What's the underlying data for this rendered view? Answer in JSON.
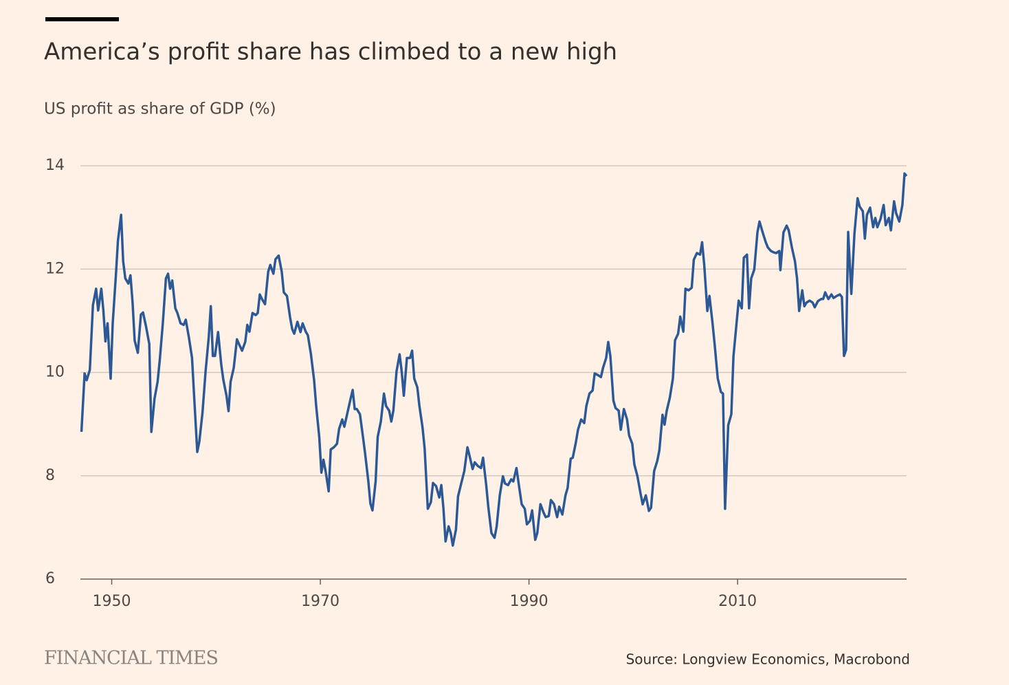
{
  "chart_data": {
    "type": "line",
    "title": "America’s profit share has climbed to a new high",
    "subtitle": "US profit as share of GDP (%)",
    "source": "Source: Longview Economics, Macrobond",
    "brand": "FINANCIAL TIMES",
    "color": "#2c5896",
    "grid": true,
    "xlim": [
      1947,
      2026.2
    ],
    "xticks": [
      1950,
      1970,
      1990,
      2010
    ],
    "ylim": [
      6,
      14
    ],
    "yticks": [
      6,
      8,
      10,
      12,
      14
    ],
    "x": [
      1947.1,
      1947.4,
      1947.6,
      1947.9,
      1948.2,
      1948.5,
      1948.7,
      1949.0,
      1949.2,
      1949.4,
      1949.6,
      1949.9,
      1950.1,
      1950.4,
      1950.6,
      1950.9,
      1951.1,
      1951.3,
      1951.6,
      1951.8,
      1952.0,
      1952.2,
      1952.5,
      1952.8,
      1953.0,
      1953.3,
      1953.6,
      1953.8,
      1954.1,
      1954.4,
      1954.6,
      1954.9,
      1955.2,
      1955.4,
      1955.6,
      1955.8,
      1956.1,
      1956.3,
      1956.6,
      1956.9,
      1957.1,
      1957.4,
      1957.7,
      1957.9,
      1958.2,
      1958.4,
      1958.7,
      1959.0,
      1959.3,
      1959.5,
      1959.7,
      1959.9,
      1960.2,
      1960.5,
      1960.7,
      1961.0,
      1961.2,
      1961.4,
      1961.7,
      1962.0,
      1962.2,
      1962.5,
      1962.8,
      1963.0,
      1963.2,
      1963.5,
      1963.8,
      1964.0,
      1964.2,
      1964.4,
      1964.7,
      1965.0,
      1965.2,
      1965.5,
      1965.7,
      1966.0,
      1966.3,
      1966.5,
      1966.8,
      1967.1,
      1967.3,
      1967.5,
      1967.8,
      1968.1,
      1968.3,
      1968.6,
      1968.8,
      1969.1,
      1969.4,
      1969.6,
      1969.9,
      1970.1,
      1970.3,
      1970.5,
      1970.8,
      1971.0,
      1971.3,
      1971.6,
      1971.8,
      1972.1,
      1972.3,
      1972.6,
      1972.9,
      1973.1,
      1973.3,
      1973.5,
      1973.8,
      1974.1,
      1974.3,
      1974.6,
      1974.8,
      1975.0,
      1975.3,
      1975.5,
      1975.8,
      1976.1,
      1976.3,
      1976.6,
      1976.8,
      1977.0,
      1977.3,
      1977.6,
      1977.8,
      1978.0,
      1978.3,
      1978.6,
      1978.8,
      1979.0,
      1979.3,
      1979.5,
      1979.8,
      1980.0,
      1980.3,
      1980.6,
      1980.8,
      1981.1,
      1981.4,
      1981.6,
      1981.8,
      1982.0,
      1982.3,
      1982.5,
      1982.7,
      1983.0,
      1983.2,
      1983.5,
      1983.8,
      1984.1,
      1984.3,
      1984.6,
      1984.8,
      1985.1,
      1985.4,
      1985.6,
      1985.9,
      1986.1,
      1986.4,
      1986.7,
      1986.9,
      1987.2,
      1987.5,
      1987.7,
      1988.0,
      1988.3,
      1988.5,
      1988.8,
      1989.1,
      1989.3,
      1989.6,
      1989.8,
      1990.1,
      1990.3,
      1990.6,
      1990.8,
      1991.1,
      1991.4,
      1991.6,
      1991.9,
      1992.1,
      1992.4,
      1992.7,
      1992.9,
      1993.2,
      1993.5,
      1993.7,
      1994.0,
      1994.2,
      1994.5,
      1994.7,
      1995.0,
      1995.3,
      1995.5,
      1995.8,
      1996.1,
      1996.3,
      1996.6,
      1996.9,
      1997.1,
      1997.4,
      1997.6,
      1997.8,
      1998.1,
      1998.3,
      1998.6,
      1998.8,
      1999.1,
      1999.4,
      1999.6,
      1999.9,
      2000.1,
      2000.4,
      2000.7,
      2000.9,
      2001.2,
      2001.5,
      2001.7,
      2002.0,
      2002.3,
      2002.5,
      2002.8,
      2003.0,
      2003.2,
      2003.5,
      2003.8,
      2004.0,
      2004.3,
      2004.5,
      2004.8,
      2005.0,
      2005.3,
      2005.6,
      2005.8,
      2006.1,
      2006.4,
      2006.6,
      2006.8,
      2007.1,
      2007.3,
      2007.6,
      2007.8,
      2008.1,
      2008.4,
      2008.6,
      2008.8,
      2009.1,
      2009.4,
      2009.6,
      2009.9,
      2010.1,
      2010.4,
      2010.6,
      2010.9,
      2011.1,
      2011.3,
      2011.6,
      2011.9,
      2012.1,
      2012.4,
      2012.7,
      2012.9,
      2013.2,
      2013.5,
      2013.7,
      2014.0,
      2014.1,
      2014.4,
      2014.7,
      2014.9,
      2015.2,
      2015.5,
      2015.7,
      2015.9,
      2016.2,
      2016.4,
      2016.6,
      2016.9,
      2017.2,
      2017.4,
      2017.7,
      2018.0,
      2018.2,
      2018.4,
      2018.7,
      2019.0,
      2019.2,
      2019.5,
      2019.8,
      2020.0,
      2020.2,
      2020.4,
      2020.6,
      2020.9,
      2021.2,
      2021.5,
      2021.7,
      2022.0,
      2022.2,
      2022.4,
      2022.7,
      2023.0,
      2023.2,
      2023.4,
      2023.7,
      2024.0,
      2024.2,
      2024.5,
      2024.7,
      2025.0,
      2025.2,
      2025.5,
      2025.8,
      2026.0,
      2026.2
    ],
    "values": [
      8.85,
      9.98,
      9.85,
      10.05,
      11.3,
      11.62,
      11.2,
      11.62,
      11.2,
      10.6,
      10.95,
      9.88,
      10.95,
      11.88,
      12.55,
      13.05,
      12.15,
      11.82,
      11.72,
      11.88,
      11.35,
      10.62,
      10.38,
      11.12,
      11.16,
      10.88,
      10.55,
      8.85,
      9.49,
      9.82,
      10.22,
      10.95,
      11.82,
      11.91,
      11.62,
      11.78,
      11.24,
      11.15,
      10.95,
      10.92,
      11.02,
      10.68,
      10.28,
      9.55,
      8.46,
      8.66,
      9.22,
      10.02,
      10.68,
      11.28,
      10.32,
      10.32,
      10.78,
      10.15,
      9.86,
      9.55,
      9.25,
      9.82,
      10.09,
      10.64,
      10.55,
      10.42,
      10.59,
      10.92,
      10.79,
      11.15,
      11.11,
      11.15,
      11.51,
      11.42,
      11.32,
      11.95,
      12.08,
      11.91,
      12.19,
      12.26,
      11.95,
      11.55,
      11.48,
      11.06,
      10.84,
      10.75,
      10.98,
      10.78,
      10.95,
      10.79,
      10.72,
      10.35,
      9.85,
      9.35,
      8.75,
      8.06,
      8.31,
      8.09,
      7.7,
      8.51,
      8.55,
      8.62,
      8.91,
      9.09,
      8.95,
      9.22,
      9.49,
      9.66,
      9.29,
      9.29,
      9.19,
      8.73,
      8.42,
      7.89,
      7.46,
      7.33,
      7.89,
      8.75,
      9.05,
      9.59,
      9.35,
      9.26,
      9.05,
      9.26,
      10.02,
      10.35,
      10.02,
      9.55,
      10.28,
      10.28,
      10.42,
      9.88,
      9.71,
      9.35,
      8.93,
      8.53,
      7.36,
      7.49,
      7.86,
      7.8,
      7.58,
      7.82,
      7.36,
      6.73,
      7.02,
      6.89,
      6.65,
      6.96,
      7.6,
      7.85,
      8.09,
      8.55,
      8.39,
      8.13,
      8.26,
      8.19,
      8.15,
      8.35,
      7.82,
      7.4,
      6.89,
      6.8,
      7.02,
      7.62,
      7.99,
      7.85,
      7.82,
      7.93,
      7.89,
      8.15,
      7.73,
      7.45,
      7.36,
      7.06,
      7.13,
      7.33,
      6.76,
      6.89,
      7.45,
      7.29,
      7.2,
      7.22,
      7.53,
      7.45,
      7.2,
      7.4,
      7.25,
      7.62,
      7.76,
      8.33,
      8.35,
      8.65,
      8.89,
      9.09,
      9.02,
      9.35,
      9.59,
      9.65,
      9.98,
      9.95,
      9.91,
      10.09,
      10.28,
      10.59,
      10.32,
      9.45,
      9.31,
      9.26,
      8.89,
      9.29,
      9.09,
      8.78,
      8.62,
      8.22,
      7.99,
      7.65,
      7.45,
      7.62,
      7.32,
      7.38,
      8.09,
      8.29,
      8.49,
      9.18,
      8.99,
      9.25,
      9.51,
      9.88,
      10.62,
      10.75,
      11.08,
      10.79,
      11.62,
      11.59,
      11.64,
      12.18,
      12.31,
      12.28,
      12.52,
      12.08,
      11.19,
      11.48,
      10.95,
      10.55,
      9.88,
      9.62,
      9.59,
      7.36,
      8.98,
      9.19,
      10.31,
      10.95,
      11.39,
      11.24,
      12.22,
      12.28,
      11.24,
      11.82,
      11.99,
      12.71,
      12.92,
      12.71,
      12.52,
      12.42,
      12.35,
      12.32,
      12.31,
      12.35,
      11.98,
      12.71,
      12.84,
      12.75,
      12.42,
      12.15,
      11.82,
      11.19,
      11.59,
      11.28,
      11.35,
      11.39,
      11.35,
      11.26,
      11.38,
      11.42,
      11.42,
      11.55,
      11.42,
      11.51,
      11.44,
      11.48,
      11.51,
      11.46,
      10.32,
      10.44,
      12.72,
      11.52,
      12.68,
      13.37,
      13.21,
      13.12,
      12.59,
      13.05,
      13.19,
      12.81,
      12.99,
      12.81,
      12.97,
      13.24,
      12.85,
      12.99,
      12.75,
      13.31,
      13.08,
      12.92,
      13.24,
      13.85,
      13.8
    ]
  }
}
